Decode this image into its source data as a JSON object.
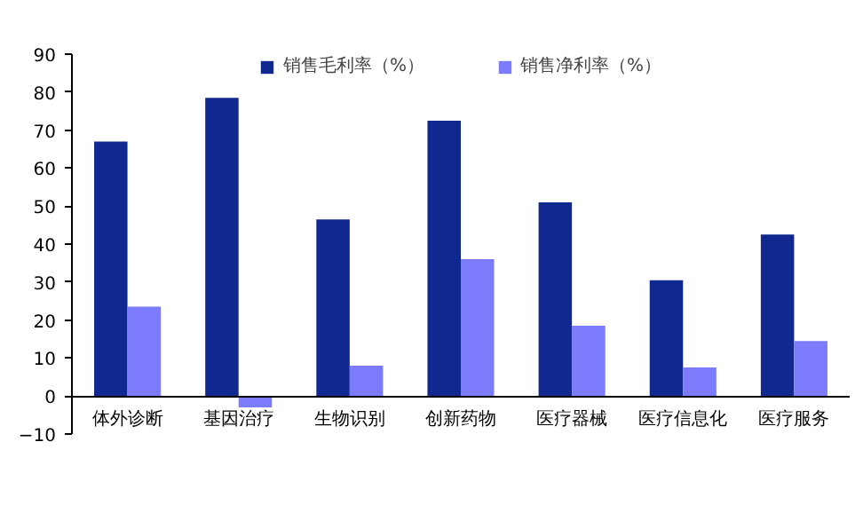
{
  "chart_data": {
    "type": "bar",
    "categories": [
      "体外诊断",
      "基因治疗",
      "生物识别",
      "创新药物",
      "医疗器械",
      "医疗信息化",
      "医疗服务"
    ],
    "series": [
      {
        "name": "销售毛利率（%）",
        "color": "#10288f",
        "values": [
          67,
          78.5,
          46.5,
          72.5,
          51,
          30.5,
          42.5
        ]
      },
      {
        "name": "销售净利率（%）",
        "color": "#7b7bfb",
        "values": [
          23.5,
          -3,
          8,
          36,
          18.5,
          7.5,
          14.5
        ]
      }
    ],
    "ylim": [
      -10,
      90
    ],
    "yticks": [
      -10,
      0,
      10,
      20,
      30,
      40,
      50,
      60,
      70,
      80,
      90
    ],
    "grid": false,
    "legend": "top"
  }
}
